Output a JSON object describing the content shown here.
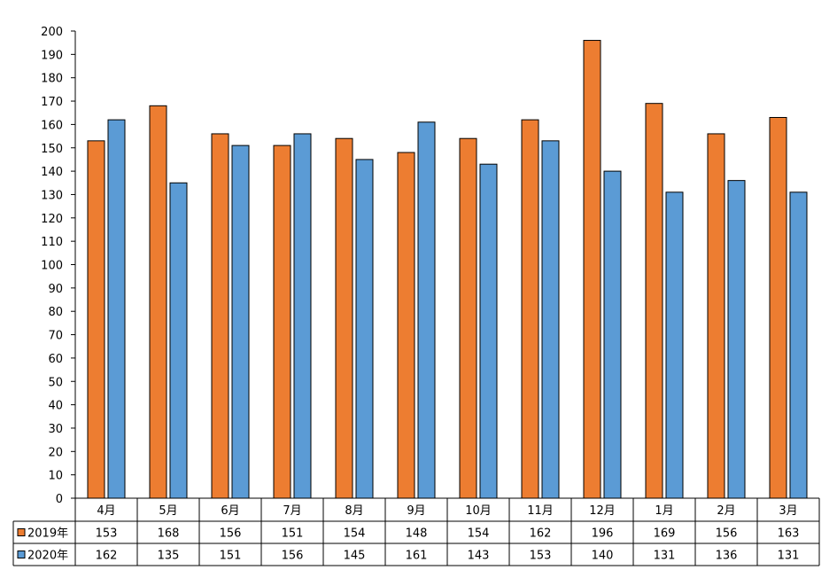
{
  "chart_data": {
    "type": "bar",
    "categories": [
      "4月",
      "5月",
      "6月",
      "7月",
      "8月",
      "9月",
      "10月",
      "11月",
      "12月",
      "1月",
      "2月",
      "3月"
    ],
    "series": [
      {
        "name": "2019年",
        "color": "#ed7d31",
        "values": [
          153,
          168,
          156,
          151,
          154,
          148,
          154,
          162,
          196,
          169,
          156,
          163
        ]
      },
      {
        "name": "2020年",
        "color": "#5b9bd5",
        "values": [
          162,
          135,
          151,
          156,
          145,
          161,
          143,
          153,
          140,
          131,
          136,
          131
        ]
      }
    ],
    "ylim": [
      0,
      200
    ],
    "ytick_step": 10,
    "data_table": true,
    "grid": false
  }
}
